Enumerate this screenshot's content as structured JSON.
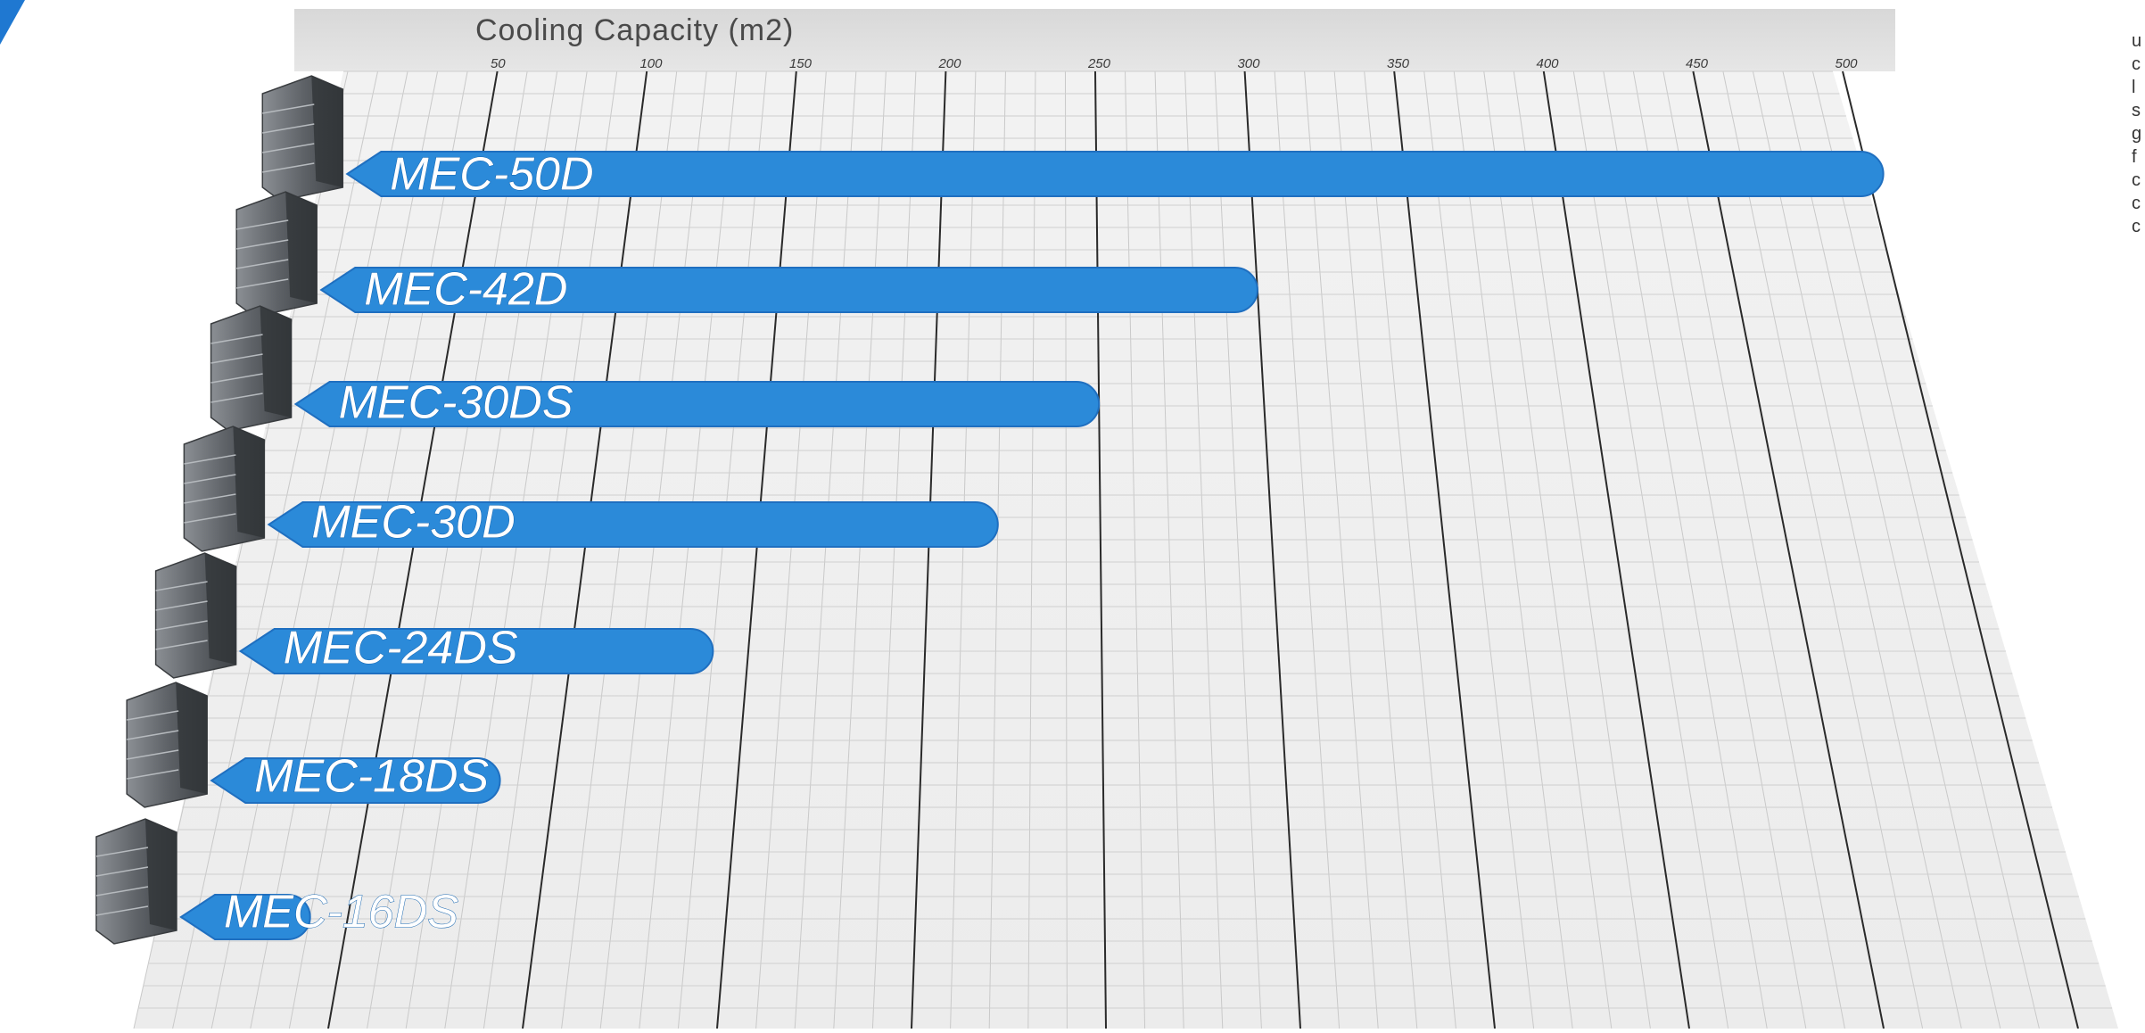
{
  "chart_data": {
    "type": "bar",
    "orientation": "horizontal",
    "title": "Cooling Capacity (m2)",
    "xlim": [
      0,
      500
    ],
    "x_ticks": [
      50,
      100,
      150,
      200,
      250,
      300,
      350,
      400,
      450,
      500
    ],
    "grid": true,
    "categories": [
      "MEC-50D",
      "MEC-42D",
      "MEC-30DS",
      "MEC-30D",
      "MEC-24DS",
      "MEC-18DS",
      "MEC-16DS"
    ],
    "values": [
      505,
      300,
      250,
      220,
      140,
      85,
      40
    ],
    "bar_color": "#2b8ad9",
    "bar_edge_color": "#1f6fc0"
  },
  "side_text": {
    "letters": [
      "u",
      "c",
      "l",
      "s",
      "g",
      "f",
      "c",
      "c",
      "c"
    ]
  }
}
